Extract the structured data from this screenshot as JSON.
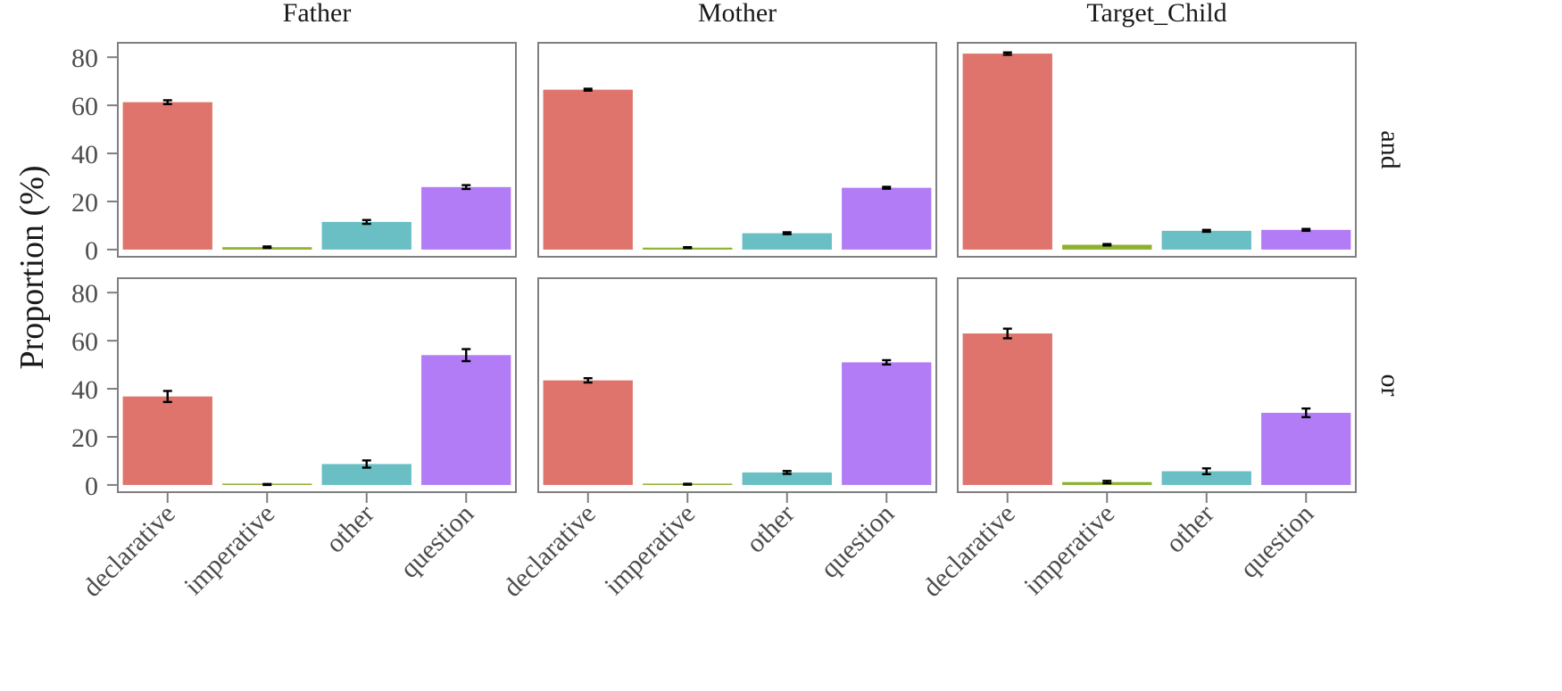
{
  "chart_data": {
    "type": "bar",
    "facets": {
      "columns": [
        "Father",
        "Mother",
        "Target_Child"
      ],
      "rows": [
        "and",
        "or"
      ]
    },
    "categories": [
      "declarative",
      "imperative",
      "other",
      "question"
    ],
    "category_colors": [
      "#DE746C",
      "#8DB12E",
      "#69BFC4",
      "#B27CF7"
    ],
    "ylabel": "Proportion (%)",
    "ylim": [
      -3,
      86
    ],
    "yticks": [
      0,
      20,
      40,
      60,
      80
    ],
    "grid": false,
    "panels": [
      {
        "row": "and",
        "column": "Father",
        "values": [
          61.3,
          1.0,
          11.5,
          26.0
        ],
        "errors": [
          0.8,
          0.3,
          0.8,
          0.8
        ]
      },
      {
        "row": "and",
        "column": "Mother",
        "values": [
          66.5,
          0.8,
          6.8,
          25.7
        ],
        "errors": [
          0.4,
          0.2,
          0.4,
          0.4
        ]
      },
      {
        "row": "and",
        "column": "Target_Child",
        "values": [
          81.5,
          2.0,
          7.8,
          8.2
        ],
        "errors": [
          0.5,
          0.3,
          0.4,
          0.4
        ]
      },
      {
        "row": "or",
        "column": "Father",
        "values": [
          36.8,
          0.2,
          8.7,
          54.0
        ],
        "errors": [
          2.3,
          0.2,
          1.5,
          2.5
        ]
      },
      {
        "row": "or",
        "column": "Mother",
        "values": [
          43.5,
          0.3,
          5.2,
          51.0
        ],
        "errors": [
          0.9,
          0.2,
          0.6,
          0.9
        ]
      },
      {
        "row": "or",
        "column": "Target_Child",
        "values": [
          63.0,
          1.2,
          5.7,
          30.0
        ],
        "errors": [
          2.0,
          0.5,
          1.2,
          1.8
        ]
      }
    ]
  }
}
